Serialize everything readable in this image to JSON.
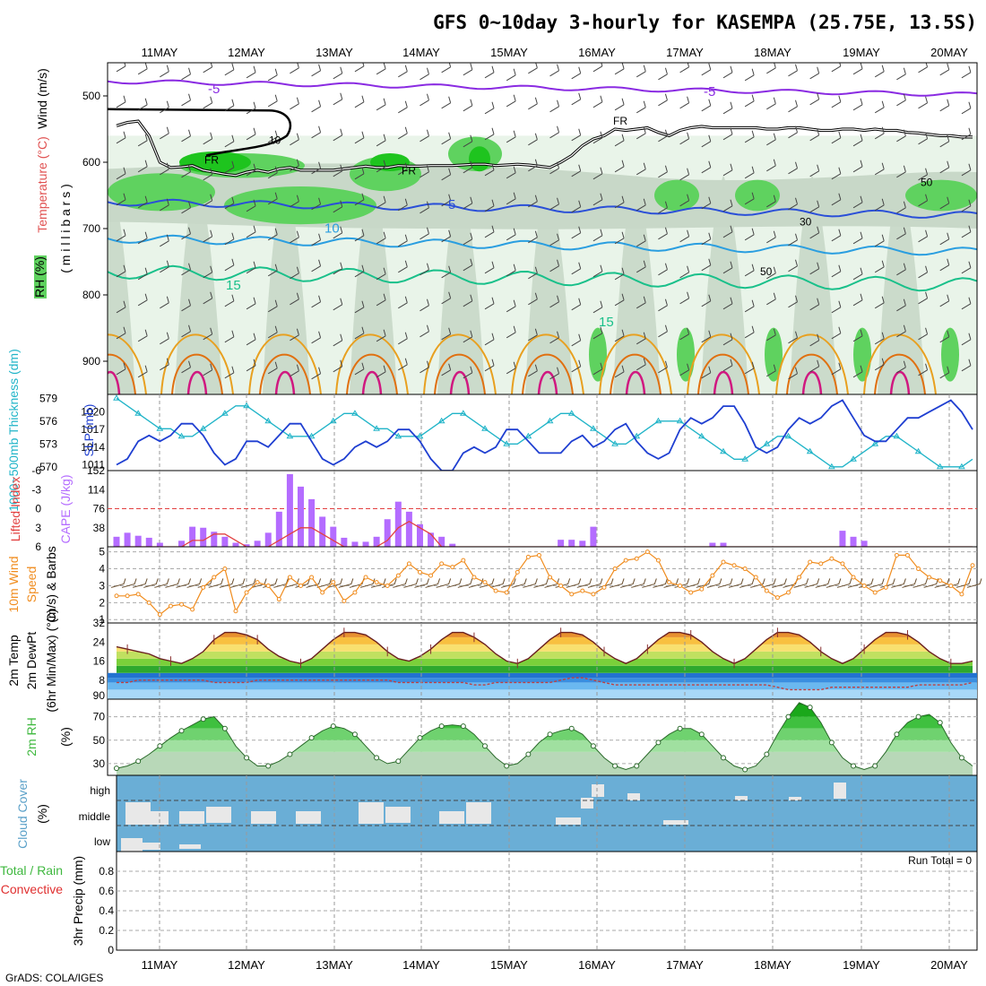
{
  "title": "GFS 0~10day 3-hourly for KASEMPA (25.75E, 13.5S)",
  "credit": "GrADS: COLA/IGES",
  "run_total": "Run Total = 0",
  "dates": [
    "11MAY",
    "12MAY",
    "13MAY",
    "14MAY",
    "15MAY",
    "16MAY",
    "17MAY",
    "18MAY",
    "19MAY",
    "20MAY"
  ],
  "colors": {
    "rh1": "#e9f4e9",
    "rh2": "#c8d8c8",
    "rh3": "#5fd25f",
    "rh4": "#1ec41e",
    "slp": "#1f3fd1",
    "thickness": "#20b4c8",
    "cape": "#b46cff",
    "li": "#e24040",
    "wind": "#f08c1e",
    "cloud": "#6aaed6",
    "rh2m": "#3fb83f"
  },
  "chart_data": [
    {
      "id": "upper",
      "type": "heatmap",
      "ylabel": [
        "RH (%)",
        "Temperature (°C)",
        "Wind (m/s)",
        "( m i l l i b a r s )"
      ],
      "y_ticks": [
        500,
        600,
        700,
        800,
        900
      ],
      "y_range": [
        450,
        950
      ],
      "contour_labels": {
        "minus5": "-5",
        "minus5b": "-5",
        "fr1": "FR",
        "fr2": "FR",
        "fr3": "FR",
        "c5": "5",
        "c10": "10",
        "c15": "15",
        "c15b": "15",
        "rh10": "10",
        "rh30": "30",
        "rh50": "50",
        "rh50b": "50"
      },
      "freeze_level": [
        545,
        540,
        538,
        560,
        600,
        608,
        607,
        605,
        612,
        615,
        618,
        620,
        615,
        612,
        615,
        610,
        608,
        612,
        612,
        612,
        612,
        610,
        608,
        606,
        608,
        608,
        605,
        606,
        606,
        605,
        605,
        605,
        604,
        603,
        603,
        605,
        604,
        603,
        604,
        606,
        608,
        600,
        590,
        575,
        565,
        560,
        550,
        552,
        550,
        548,
        555,
        560,
        552,
        548,
        546,
        548,
        548,
        548,
        548,
        548,
        550,
        550,
        548,
        548,
        550,
        552,
        552,
        550,
        550,
        552,
        550,
        552,
        552,
        555,
        556,
        558,
        560,
        560,
        562,
        562
      ]
    },
    {
      "id": "slp",
      "type": "line",
      "ylabel_left": "1000~500mb Thickness (dm)",
      "ylabel_right": "SLP (mb)",
      "left_ticks": [
        570,
        573,
        576,
        579
      ],
      "right_ticks": [
        1011,
        1014,
        1017,
        1020
      ],
      "slp_range": [
        1010,
        1023
      ],
      "thick_range": [
        569.5,
        579.5
      ],
      "slp": [
        1011,
        1012,
        1015,
        1016,
        1015,
        1016,
        1018,
        1018,
        1016,
        1013,
        1011,
        1012,
        1015,
        1015,
        1014,
        1016,
        1018,
        1018,
        1015,
        1012,
        1011,
        1012,
        1014,
        1015,
        1014,
        1015,
        1017,
        1017,
        1015,
        1012,
        1010,
        1010,
        1013,
        1014,
        1013,
        1014,
        1017,
        1017,
        1015,
        1013,
        1013,
        1013,
        1015,
        1016,
        1014,
        1015,
        1017,
        1018,
        1015,
        1013,
        1012,
        1013,
        1017,
        1019,
        1018,
        1019,
        1021,
        1021,
        1018,
        1014,
        1013,
        1014,
        1017,
        1019,
        1018,
        1019,
        1021,
        1022,
        1019,
        1016,
        1015,
        1015,
        1017,
        1019,
        1019,
        1020,
        1021,
        1022,
        1020,
        1017
      ],
      "thickness": [
        579,
        578,
        577,
        576,
        575,
        575,
        574,
        574,
        575,
        576,
        577,
        578,
        578,
        577,
        576,
        575,
        574,
        574,
        574,
        575,
        576,
        577,
        577,
        576,
        575,
        575,
        574,
        574,
        574,
        575,
        576,
        577,
        577,
        576,
        575,
        574,
        573,
        573,
        574,
        575,
        576,
        577,
        577,
        576,
        575,
        574,
        573,
        573,
        574,
        575,
        576,
        576,
        576,
        575,
        574,
        573,
        572,
        571,
        571,
        572,
        573,
        574,
        574,
        573,
        572,
        571,
        570,
        570,
        571,
        572,
        573,
        574,
        574,
        573,
        572,
        571,
        570,
        570,
        570,
        571
      ]
    },
    {
      "id": "cape",
      "type": "bar",
      "ylabel_left": "Lifted Index",
      "ylabel_right": "CAPE (J/kg)",
      "left_ticks": [
        "-6",
        "-3",
        "0",
        "3",
        "6"
      ],
      "right_ticks": [
        152,
        114,
        76,
        38
      ],
      "cape_max": 152,
      "cape": [
        20,
        28,
        22,
        18,
        8,
        0,
        12,
        40,
        38,
        30,
        20,
        8,
        5,
        12,
        28,
        70,
        145,
        120,
        95,
        60,
        40,
        18,
        10,
        10,
        20,
        55,
        90,
        70,
        45,
        28,
        20,
        6,
        0,
        0,
        0,
        0,
        0,
        0,
        0,
        0,
        0,
        14,
        14,
        12,
        40,
        0,
        0,
        0,
        0,
        0,
        0,
        0,
        0,
        0,
        0,
        8,
        8,
        0,
        0,
        0,
        0,
        0,
        0,
        0,
        0,
        0,
        0,
        32,
        20,
        12,
        0,
        0,
        0,
        0,
        0,
        0,
        0,
        0,
        0,
        0
      ],
      "li": [
        6,
        6,
        6,
        6,
        6,
        6,
        6,
        5,
        5,
        4,
        4,
        5,
        6,
        6,
        6,
        5,
        4,
        3,
        3,
        4,
        5,
        6,
        6,
        6,
        6,
        5,
        3,
        2,
        3,
        4,
        6,
        6,
        6,
        6,
        6,
        6,
        6,
        6,
        6,
        6,
        6,
        6,
        6,
        6,
        6,
        6,
        6,
        6,
        6,
        6,
        6,
        6,
        6,
        6,
        6,
        6,
        6,
        6,
        6,
        6,
        6,
        6,
        6,
        6,
        6,
        6,
        6,
        6,
        6,
        6,
        6,
        6,
        6,
        6,
        6,
        6,
        6,
        6,
        6,
        6
      ]
    },
    {
      "id": "wind10m",
      "type": "line",
      "ylabel": [
        "10m Wind",
        "Speed",
        "(m/s) & Barbs"
      ],
      "y_ticks": [
        1,
        2,
        3,
        4,
        5
      ],
      "y_range": [
        0.8,
        5.3
      ],
      "speed": [
        2.4,
        2.4,
        2.5,
        2.0,
        1.3,
        1.8,
        1.9,
        1.6,
        2.9,
        3.5,
        4.0,
        1.5,
        2.6,
        3.2,
        3.0,
        2.2,
        3.5,
        3.0,
        3.5,
        2.6,
        3.2,
        2.1,
        2.6,
        3.5,
        3.2,
        3.0,
        3.6,
        4.3,
        3.8,
        3.6,
        4.3,
        4.1,
        4.5,
        3.5,
        3.2,
        2.7,
        2.6,
        3.8,
        4.7,
        4.8,
        3.5,
        3.0,
        2.5,
        2.7,
        2.5,
        2.9,
        4.0,
        4.5,
        4.6,
        5.0,
        4.5,
        3.2,
        3.0,
        2.6,
        2.8,
        3.6,
        4.4,
        4.2,
        4.0,
        3.5,
        2.7,
        2.3,
        2.6,
        3.5,
        4.4,
        4.3,
        4.6,
        4.3,
        3.5,
        3.0,
        2.6,
        2.9,
        4.8,
        4.8,
        4.0,
        3.5,
        3.3,
        3.0,
        2.5,
        4.2
      ]
    },
    {
      "id": "temp2m",
      "type": "area",
      "ylabel": [
        "2m Temp",
        "2m DewPt",
        "(6hr Min/Max) (°C)"
      ],
      "y_ticks": [
        8,
        16,
        24,
        32
      ],
      "bottom_tick": "90",
      "y_range": [
        0,
        32
      ],
      "temp": [
        22,
        21,
        20,
        19,
        17,
        16,
        15,
        17,
        20,
        25,
        28,
        28,
        27,
        25,
        21,
        18,
        16,
        15,
        17,
        21,
        25,
        28,
        28,
        27,
        24,
        20,
        17,
        16,
        18,
        21,
        25,
        28,
        28,
        26,
        23,
        19,
        16,
        15,
        17,
        21,
        25,
        28,
        28,
        27,
        24,
        20,
        17,
        15,
        17,
        21,
        25,
        28,
        28,
        27,
        24,
        20,
        17,
        15,
        17,
        21,
        25,
        28,
        28,
        27,
        24,
        20,
        17,
        15,
        17,
        21,
        25,
        28,
        28,
        27,
        24,
        20,
        17,
        15,
        15,
        16
      ],
      "dewpt": [
        7,
        7,
        8,
        8,
        8,
        8,
        8,
        8,
        8,
        7,
        7,
        7,
        7,
        8,
        8,
        8,
        8,
        8,
        8,
        8,
        8,
        8,
        8,
        8,
        8,
        8,
        7,
        7,
        7,
        7,
        7,
        7,
        7,
        6,
        6,
        7,
        7,
        7,
        7,
        7,
        7,
        8,
        9,
        9,
        8,
        7,
        6,
        6,
        6,
        6,
        6,
        6,
        6,
        6,
        6,
        6,
        6,
        6,
        6,
        6,
        6,
        5,
        4,
        4,
        4,
        4,
        5,
        5,
        5,
        5,
        5,
        5,
        5,
        5,
        6,
        6,
        6,
        6,
        6,
        7
      ]
    },
    {
      "id": "rh2m",
      "type": "area",
      "ylabel": [
        "2m RH",
        "(%)"
      ],
      "y_ticks": [
        30,
        50,
        70
      ],
      "y_range": [
        20,
        85
      ],
      "rh": [
        26,
        28,
        32,
        38,
        45,
        52,
        58,
        63,
        68,
        70,
        60,
        45,
        35,
        28,
        28,
        32,
        38,
        45,
        52,
        58,
        62,
        60,
        55,
        45,
        35,
        30,
        32,
        42,
        52,
        58,
        62,
        63,
        62,
        55,
        45,
        35,
        28,
        30,
        38,
        48,
        55,
        58,
        60,
        55,
        45,
        35,
        28,
        25,
        28,
        38,
        48,
        55,
        60,
        60,
        55,
        45,
        35,
        28,
        25,
        28,
        38,
        55,
        70,
        82,
        78,
        65,
        48,
        35,
        28,
        25,
        28,
        40,
        55,
        65,
        70,
        72,
        65,
        48,
        35,
        28
      ]
    },
    {
      "id": "cloud",
      "type": "heatmap",
      "ylabel": [
        "Cloud Cover",
        "(%)"
      ],
      "y_labels": [
        "high",
        "middle",
        "low"
      ]
    },
    {
      "id": "precip",
      "type": "bar",
      "ylabel_lines": [
        "Total / Rain",
        "Convective",
        "3hr Precip (mm)"
      ],
      "y_ticks": [
        0,
        0.2,
        0.4,
        0.6,
        0.8
      ],
      "y_range": [
        0,
        1
      ],
      "values": []
    }
  ]
}
